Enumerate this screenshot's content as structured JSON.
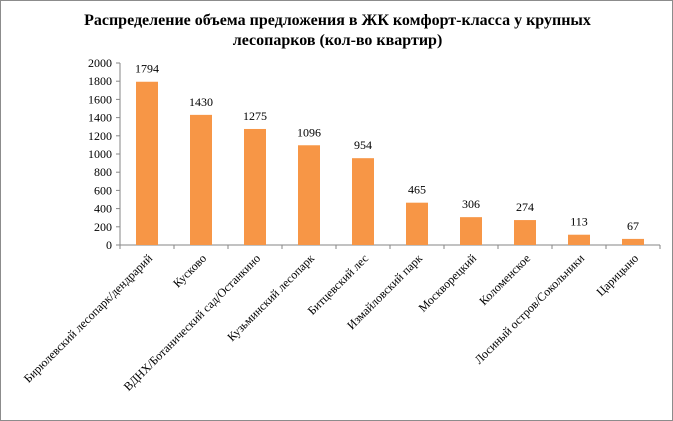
{
  "chart_data": {
    "type": "bar",
    "title_lines": [
      "Распределение объема предложения в ЖК комфорт-класса у крупных",
      "лесопарков (кол-во квартир)"
    ],
    "categories": [
      "Бирюлевский лесопарк/дендрарий",
      "Кусково",
      "ВДНХ/Ботанический  сад/Останкино",
      "Кузьминский лесопарк",
      "Битцевский лес",
      "Измайловский парк",
      "Москворецкий",
      "Коломенское",
      "Лосиный остров/Сокольники",
      "Царицыно"
    ],
    "values": [
      1794,
      1430,
      1275,
      1096,
      954,
      465,
      306,
      274,
      113,
      67
    ],
    "ylim": [
      0,
      2000
    ],
    "yticks": [
      0,
      200,
      400,
      600,
      800,
      1000,
      1200,
      1400,
      1600,
      1800,
      2000
    ],
    "bar_color": "#F79646",
    "grid": false,
    "legend": "none",
    "xlabel": "",
    "ylabel": ""
  }
}
